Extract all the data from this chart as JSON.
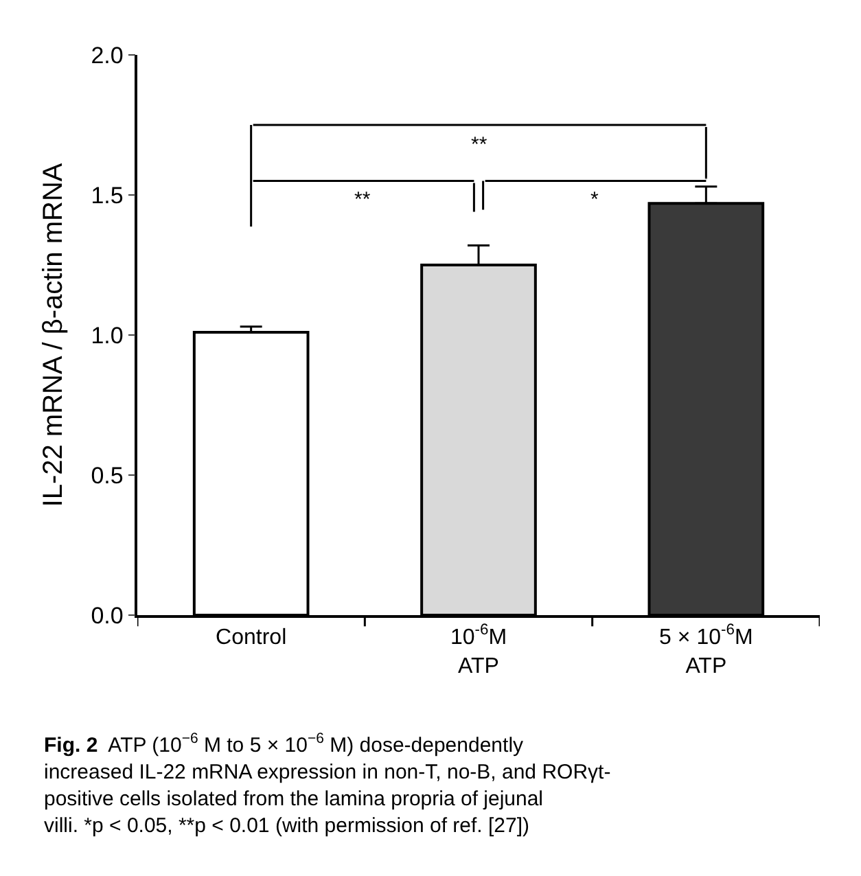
{
  "chart_data": {
    "type": "bar",
    "categories": [
      "Control",
      "10$^{-6}$M ATP",
      "5 × 10$^{-6}$M ATP"
    ],
    "values": [
      1.01,
      1.25,
      1.47
    ],
    "colors": [
      "#ffffff",
      "#d9d9d9",
      "#3a3a3a"
    ],
    "errors": [
      [
        1.01,
        1.03
      ],
      [
        1.25,
        1.32
      ],
      [
        1.47,
        1.53
      ]
    ],
    "ylabel": "IL-22 mRNA / β-actin mRNA",
    "ylim": [
      0,
      2.0
    ],
    "yticks": [
      {
        "value": 0,
        "label": "0.0"
      },
      {
        "value": 0.5,
        "label": "0.5"
      },
      {
        "value": 1.0,
        "label": "1.0"
      },
      {
        "value": 1.5,
        "label": "1.5"
      },
      {
        "value": 2.0,
        "label": "2.0"
      }
    ],
    "annotations": [
      "**",
      "*",
      "**",
      "Fig. 2",
      "ATP (10$^{−6}$ M to 5 × 10$^{−6}$ M) dose-dependently increased IL-22 mRNA expression in non-T, no-B, and RORγt-positive cells isolated from the lamina propria of jejunal villi. *p < 0.05, **p < 0.01 (with permission of ref. [27])"
    ]
  }
}
